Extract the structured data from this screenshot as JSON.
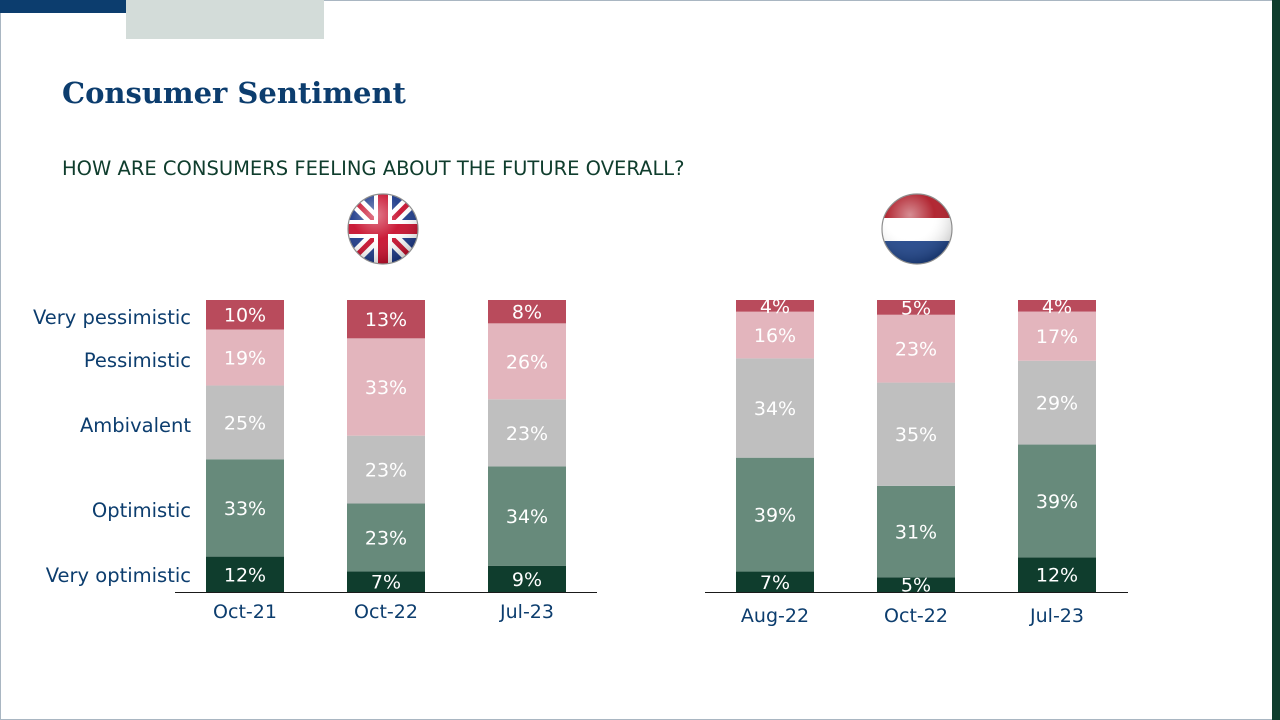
{
  "slide": {
    "title": "Consumer Sentiment",
    "subtitle": "HOW ARE CONSUMERS FEELING ABOUT THE FUTURE OVERALL?"
  },
  "flags": {
    "left": "united-kingdom-flag-icon",
    "right": "netherlands-flag-icon"
  },
  "colors": {
    "very_pessimistic": "#b94b5c",
    "pessimistic": "#e3b5bd",
    "ambivalent": "#bfbfbf",
    "optimistic": "#678a7b",
    "very_optimistic": "#0f3d2d",
    "axis_label": "#0c3d6e",
    "bar_label": "#ffffff"
  },
  "chart_data": [
    {
      "type": "bar",
      "stacked": true,
      "categories": [
        "Oct-21",
        "Oct-22",
        "Jul-23"
      ],
      "legend_labels": [
        "Very optimistic",
        "Optimistic",
        "Ambivalent",
        "Pessimistic",
        "Very pessimistic"
      ],
      "series": [
        {
          "name": "Very optimistic",
          "values": [
            12,
            7,
            9
          ]
        },
        {
          "name": "Optimistic",
          "values": [
            33,
            23,
            34
          ]
        },
        {
          "name": "Ambivalent",
          "values": [
            25,
            23,
            23
          ]
        },
        {
          "name": "Pessimistic",
          "values": [
            19,
            33,
            26
          ]
        },
        {
          "name": "Very pessimistic",
          "values": [
            10,
            13,
            8
          ]
        }
      ],
      "data_labels": [
        [
          "12%",
          "7%",
          "9%"
        ],
        [
          "33%",
          "23%",
          "34%"
        ],
        [
          "25%",
          "23%",
          "23%"
        ],
        [
          "19%",
          "33%",
          "26%"
        ],
        [
          "10%",
          "13%",
          "8%"
        ]
      ],
      "ylim": [
        0,
        100
      ]
    },
    {
      "type": "bar",
      "stacked": true,
      "categories": [
        "Aug-22",
        "Oct-22",
        "Jul-23"
      ],
      "series": [
        {
          "name": "Very optimistic",
          "values": [
            7,
            5,
            12
          ]
        },
        {
          "name": "Optimistic",
          "values": [
            39,
            31,
            39
          ]
        },
        {
          "name": "Ambivalent",
          "values": [
            34,
            35,
            29
          ]
        },
        {
          "name": "Pessimistic",
          "values": [
            16,
            23,
            17
          ]
        },
        {
          "name": "Very pessimistic",
          "values": [
            4,
            5,
            4
          ]
        }
      ],
      "data_labels": [
        [
          "7%",
          "5%",
          "12%"
        ],
        [
          "39%",
          "31%",
          "39%"
        ],
        [
          "34%",
          "35%",
          "29%"
        ],
        [
          "16%",
          "23%",
          "17%"
        ],
        [
          "4%",
          "5%",
          "4%"
        ]
      ],
      "ylim": [
        0,
        100
      ]
    }
  ]
}
